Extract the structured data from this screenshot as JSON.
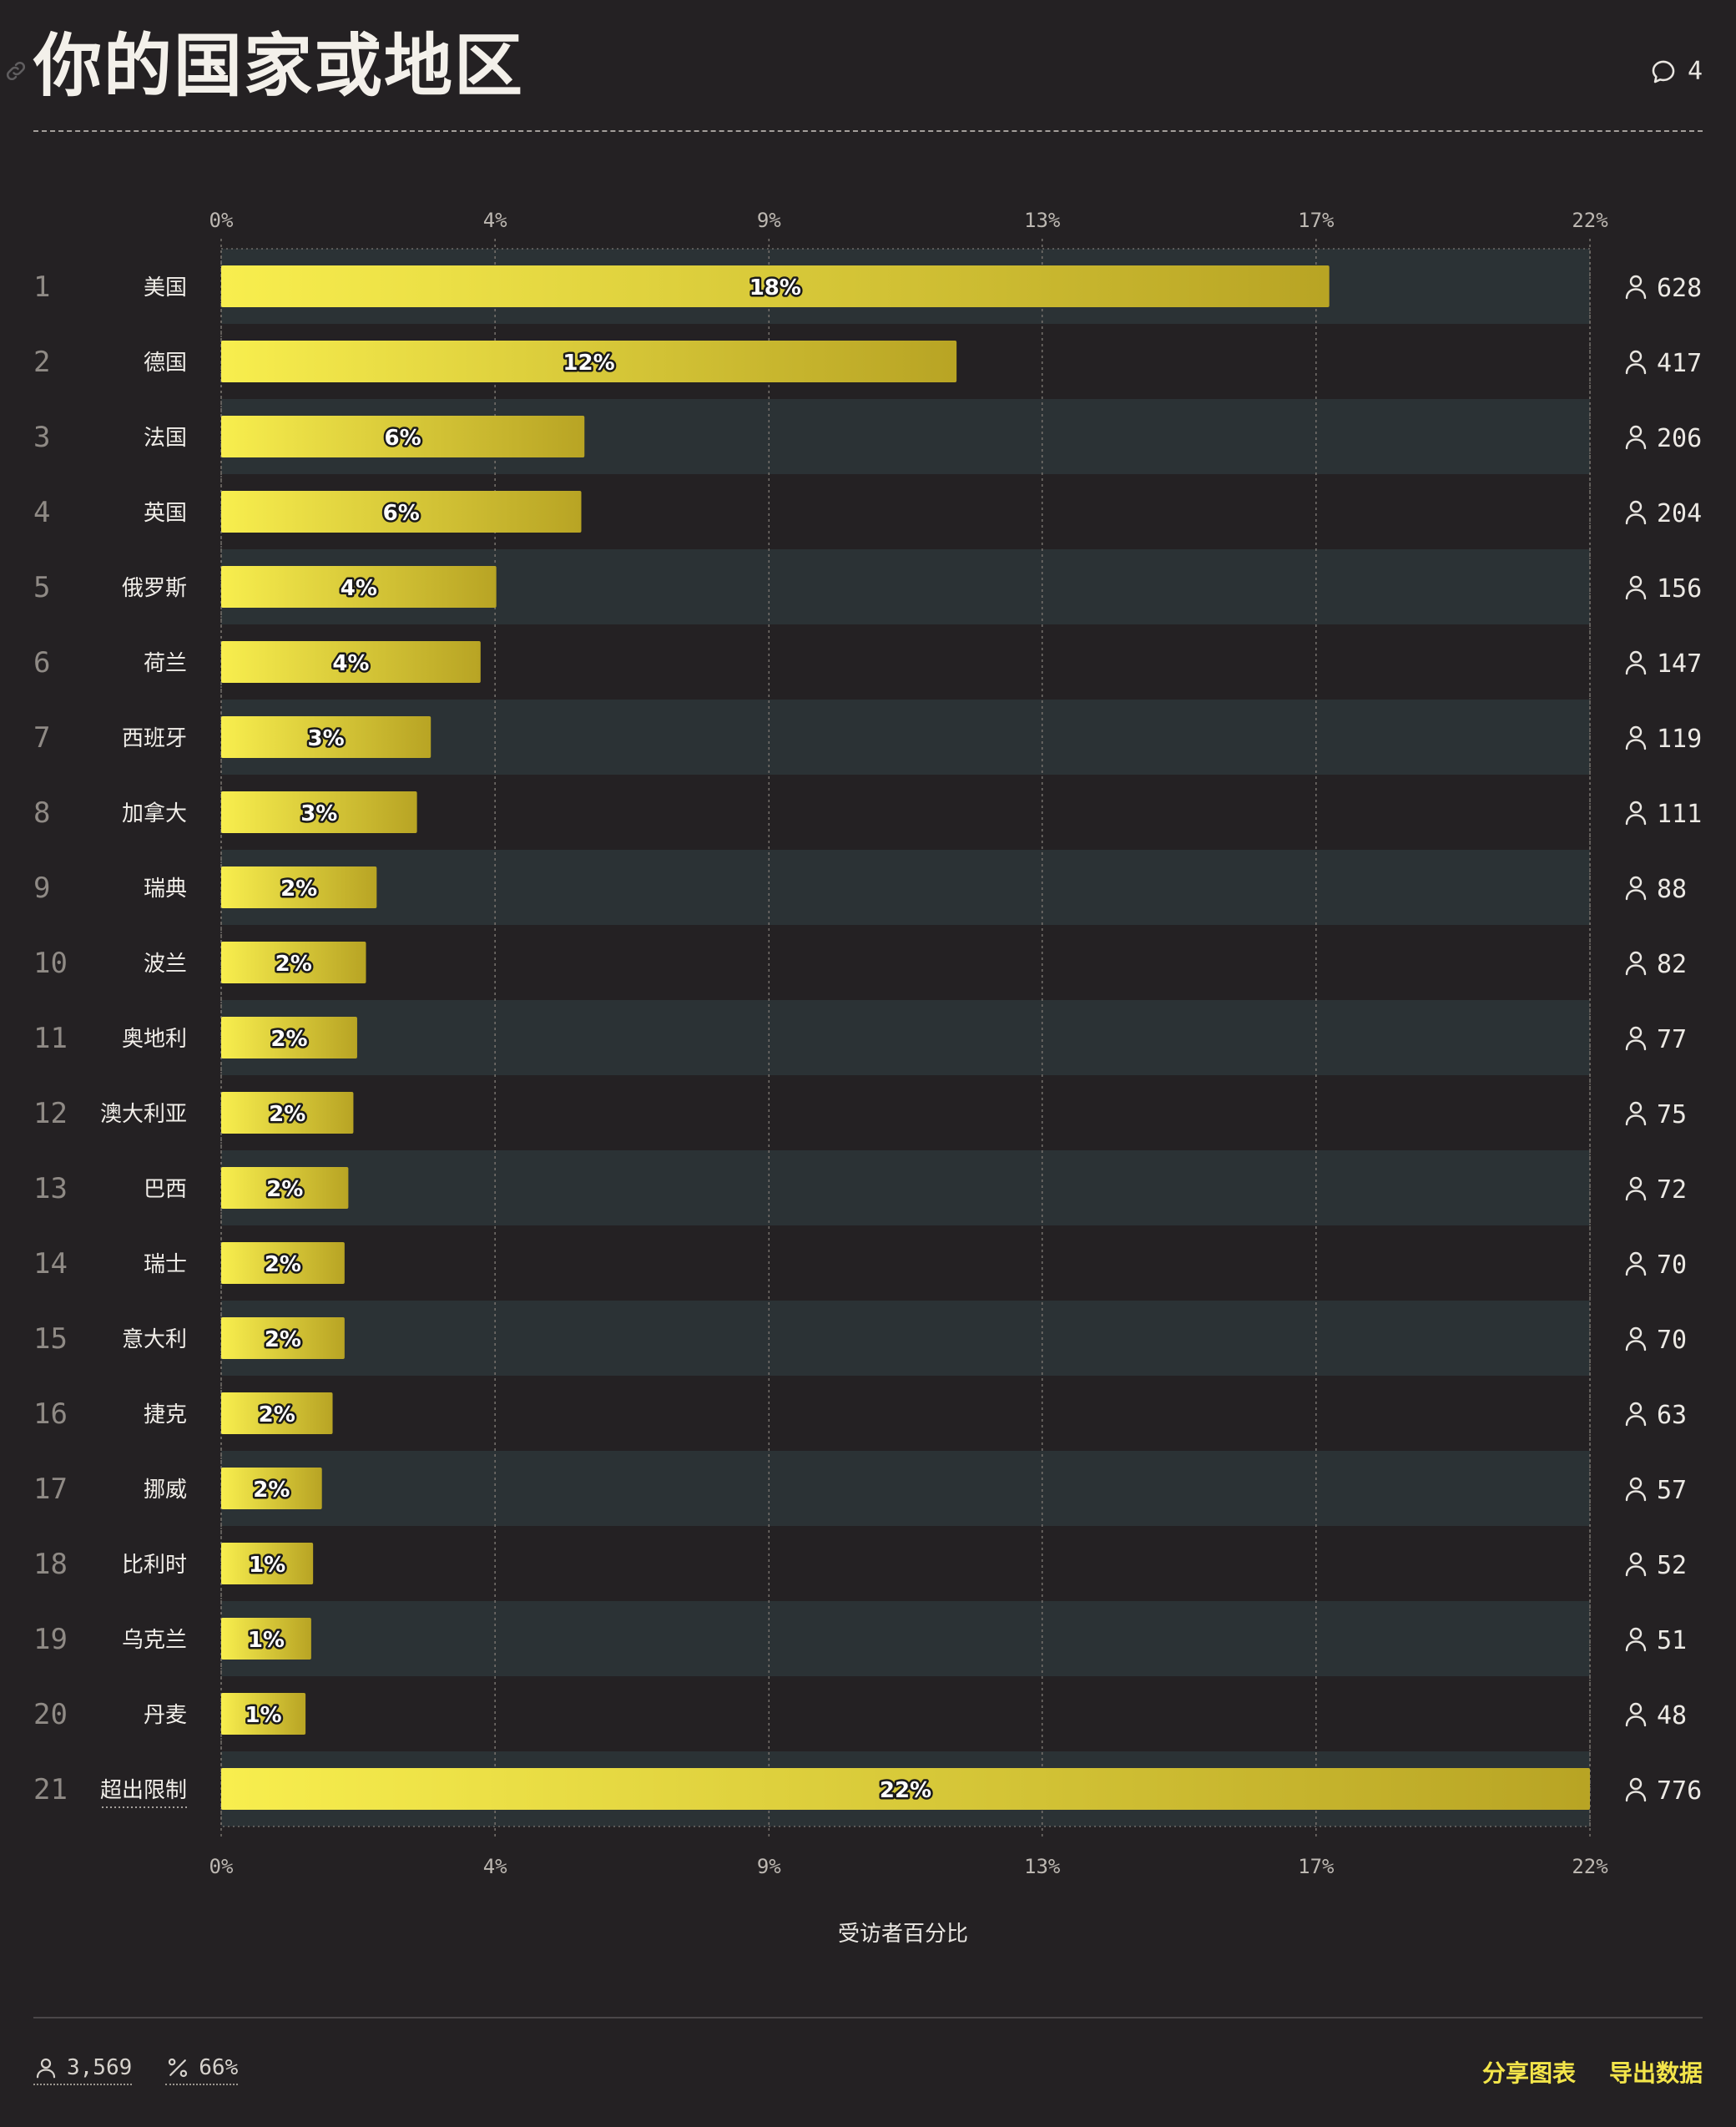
{
  "header": {
    "title": "你的国家或地区",
    "comment_count": "4"
  },
  "icons": {
    "link": "link-icon",
    "comment": "comment-icon",
    "person": "person-icon",
    "percent": "percent-icon"
  },
  "colors": {
    "background": "#242123",
    "band": "#2b3235",
    "bar_start": "#f8ee4e",
    "bar_end": "#b8a424",
    "accent": "#f3e54a"
  },
  "chart_data": {
    "type": "bar",
    "orientation": "horizontal",
    "title": "你的国家或地区",
    "xlabel": "受访者百分比",
    "xlim": [
      0,
      21.74
    ],
    "x_ticks": [
      {
        "value": 0,
        "label": "0%"
      },
      {
        "value": 4.35,
        "label": "4%"
      },
      {
        "value": 8.7,
        "label": "9%"
      },
      {
        "value": 13.04,
        "label": "13%"
      },
      {
        "value": 17.39,
        "label": "17%"
      },
      {
        "value": 21.74,
        "label": "22%"
      }
    ],
    "grid": true,
    "rows": [
      {
        "rank": "1",
        "label": "美国",
        "value": 17.6,
        "value_label": "18%",
        "count": "628"
      },
      {
        "rank": "2",
        "label": "德国",
        "value": 11.68,
        "value_label": "12%",
        "count": "417"
      },
      {
        "rank": "3",
        "label": "法国",
        "value": 5.77,
        "value_label": "6%",
        "count": "206"
      },
      {
        "rank": "4",
        "label": "英国",
        "value": 5.72,
        "value_label": "6%",
        "count": "204"
      },
      {
        "rank": "5",
        "label": "俄罗斯",
        "value": 4.37,
        "value_label": "4%",
        "count": "156"
      },
      {
        "rank": "6",
        "label": "荷兰",
        "value": 4.12,
        "value_label": "4%",
        "count": "147"
      },
      {
        "rank": "7",
        "label": "西班牙",
        "value": 3.33,
        "value_label": "3%",
        "count": "119"
      },
      {
        "rank": "8",
        "label": "加拿大",
        "value": 3.11,
        "value_label": "3%",
        "count": "111"
      },
      {
        "rank": "9",
        "label": "瑞典",
        "value": 2.47,
        "value_label": "2%",
        "count": "88"
      },
      {
        "rank": "10",
        "label": "波兰",
        "value": 2.3,
        "value_label": "2%",
        "count": "82"
      },
      {
        "rank": "11",
        "label": "奥地利",
        "value": 2.16,
        "value_label": "2%",
        "count": "77"
      },
      {
        "rank": "12",
        "label": "澳大利亚",
        "value": 2.1,
        "value_label": "2%",
        "count": "75"
      },
      {
        "rank": "13",
        "label": "巴西",
        "value": 2.02,
        "value_label": "2%",
        "count": "72"
      },
      {
        "rank": "14",
        "label": "瑞士",
        "value": 1.96,
        "value_label": "2%",
        "count": "70"
      },
      {
        "rank": "15",
        "label": "意大利",
        "value": 1.96,
        "value_label": "2%",
        "count": "70"
      },
      {
        "rank": "16",
        "label": "捷克",
        "value": 1.77,
        "value_label": "2%",
        "count": "63"
      },
      {
        "rank": "17",
        "label": "挪威",
        "value": 1.6,
        "value_label": "2%",
        "count": "57"
      },
      {
        "rank": "18",
        "label": "比利时",
        "value": 1.46,
        "value_label": "1%",
        "count": "52"
      },
      {
        "rank": "19",
        "label": "乌克兰",
        "value": 1.43,
        "value_label": "1%",
        "count": "51"
      },
      {
        "rank": "20",
        "label": "丹麦",
        "value": 1.34,
        "value_label": "1%",
        "count": "48"
      },
      {
        "rank": "21",
        "label": "超出限制",
        "value": 21.74,
        "value_label": "22%",
        "count": "776"
      }
    ]
  },
  "footer": {
    "respondents": "3,569",
    "response_rate": "66%",
    "share_label": "分享图表",
    "export_label": "导出数据"
  }
}
